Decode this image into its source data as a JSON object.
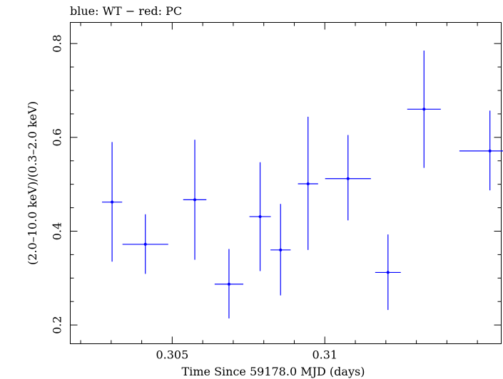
{
  "chart_data": {
    "type": "scatter",
    "title": "blue: WT − red: PC",
    "xlabel": "Time Since 59178.0 MJD (days)",
    "ylabel": "(2.0–10.0 keV)/(0.3–2.0 keV)",
    "xlim": [
      0.30166,
      0.31578
    ],
    "ylim": [
      0.16,
      0.845
    ],
    "x_ticks": [
      {
        "value": 0.305,
        "label": "0.305"
      },
      {
        "value": 0.31,
        "label": "0.31"
      }
    ],
    "y_ticks": [
      {
        "value": 0.2,
        "label": "0.2"
      },
      {
        "value": 0.4,
        "label": "0.4"
      },
      {
        "value": 0.6,
        "label": "0.6"
      },
      {
        "value": 0.8,
        "label": "0.8"
      }
    ],
    "x_minor_step": 0.001,
    "y_minor_step": 0.05,
    "grid": false,
    "series": [
      {
        "name": "WT",
        "color": "#0000ff",
        "points": [
          {
            "x": 0.30303,
            "xerr": 0.00033,
            "y": 0.462,
            "ylo": 0.335,
            "yhi": 0.59
          },
          {
            "x": 0.30412,
            "xerr": 0.00075,
            "y": 0.372,
            "ylo": 0.309,
            "yhi": 0.436
          },
          {
            "x": 0.30574,
            "xerr": 0.00038,
            "y": 0.467,
            "ylo": 0.339,
            "yhi": 0.595
          },
          {
            "x": 0.30686,
            "xerr": 0.00047,
            "y": 0.287,
            "ylo": 0.214,
            "yhi": 0.362
          },
          {
            "x": 0.30788,
            "xerr": 0.00035,
            "y": 0.431,
            "ylo": 0.315,
            "yhi": 0.547
          },
          {
            "x": 0.30855,
            "xerr": 0.00033,
            "y": 0.36,
            "ylo": 0.263,
            "yhi": 0.458
          },
          {
            "x": 0.30945,
            "xerr": 0.00033,
            "y": 0.501,
            "ylo": 0.36,
            "yhi": 0.644
          },
          {
            "x": 0.31076,
            "xerr": 0.00075,
            "y": 0.512,
            "ylo": 0.423,
            "yhi": 0.605
          },
          {
            "x": 0.31207,
            "xerr": 0.00042,
            "y": 0.312,
            "ylo": 0.232,
            "yhi": 0.393
          },
          {
            "x": 0.31325,
            "xerr": 0.00055,
            "y": 0.66,
            "ylo": 0.535,
            "yhi": 0.785
          },
          {
            "x": 0.31541,
            "xerr": 0.001,
            "y": 0.571,
            "ylo": 0.487,
            "yhi": 0.657
          }
        ]
      }
    ]
  }
}
